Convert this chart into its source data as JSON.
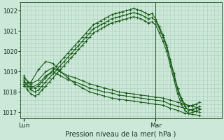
{
  "title": "Pression niveau de la mer( hPa )",
  "ylim": [
    1016.7,
    1022.4
  ],
  "xlim": [
    -1,
    54
  ],
  "yticks": [
    1017,
    1018,
    1019,
    1020,
    1021,
    1022
  ],
  "xtick_positions": [
    0,
    36
  ],
  "xtick_labels": [
    "Lun",
    "Mar"
  ],
  "background_color": "#cce8d8",
  "grid_color": "#aaccbb",
  "line_color": "#1a5c1a",
  "vline_x": 36,
  "series": [
    {
      "x": [
        0,
        1,
        2,
        3,
        4,
        5,
        6,
        7,
        8,
        9,
        10,
        11,
        12,
        13,
        14,
        15,
        16,
        17,
        18,
        19,
        20,
        21,
        22,
        23,
        24,
        25,
        26,
        27,
        28,
        29,
        30,
        31,
        32,
        33,
        34,
        35,
        36,
        37,
        38,
        39,
        40,
        41,
        42,
        43,
        44,
        45,
        46,
        47,
        48
      ],
      "y": [
        1018.8,
        1018.5,
        1018.3,
        1018.2,
        1018.3,
        1018.5,
        1018.7,
        1018.9,
        1019.1,
        1019.3,
        1019.5,
        1019.7,
        1019.9,
        1020.1,
        1020.3,
        1020.5,
        1020.7,
        1020.9,
        1021.1,
        1021.3,
        1021.4,
        1021.5,
        1021.6,
        1021.7,
        1021.8,
        1021.85,
        1021.9,
        1021.95,
        1022.0,
        1022.05,
        1022.1,
        1022.05,
        1022.0,
        1021.9,
        1021.8,
        1021.85,
        1021.6,
        1021.2,
        1020.8,
        1020.3,
        1019.6,
        1018.9,
        1018.2,
        1017.7,
        1017.4,
        1017.3,
        1017.35,
        1017.4,
        1017.5
      ]
    },
    {
      "x": [
        0,
        1,
        2,
        3,
        4,
        5,
        6,
        7,
        8,
        9,
        10,
        11,
        12,
        13,
        14,
        15,
        16,
        17,
        18,
        19,
        20,
        21,
        22,
        23,
        24,
        25,
        26,
        27,
        28,
        29,
        30,
        31,
        32,
        33,
        34,
        35,
        36,
        37,
        38,
        39,
        40,
        41,
        42,
        43,
        44,
        45,
        46,
        47,
        48
      ],
      "y": [
        1018.6,
        1018.3,
        1018.1,
        1018.0,
        1018.1,
        1018.3,
        1018.5,
        1018.7,
        1018.9,
        1019.1,
        1019.3,
        1019.5,
        1019.7,
        1019.9,
        1020.1,
        1020.3,
        1020.5,
        1020.7,
        1020.9,
        1021.1,
        1021.2,
        1021.3,
        1021.4,
        1021.5,
        1021.6,
        1021.65,
        1021.7,
        1021.75,
        1021.8,
        1021.85,
        1021.9,
        1021.85,
        1021.8,
        1021.7,
        1021.6,
        1021.65,
        1021.5,
        1021.1,
        1020.7,
        1020.2,
        1019.5,
        1018.8,
        1018.1,
        1017.6,
        1017.3,
        1017.1,
        1017.15,
        1017.2,
        1017.3
      ]
    },
    {
      "x": [
        0,
        2,
        4,
        6,
        8,
        10,
        12,
        14,
        16,
        18,
        20,
        22,
        24,
        26,
        28,
        30,
        32,
        34,
        36,
        38,
        40,
        42,
        44,
        46,
        48
      ],
      "y": [
        1018.7,
        1018.4,
        1018.6,
        1019.0,
        1019.2,
        1019.0,
        1018.8,
        1018.7,
        1018.55,
        1018.4,
        1018.3,
        1018.2,
        1018.1,
        1018.0,
        1017.95,
        1017.9,
        1017.85,
        1017.8,
        1017.75,
        1017.7,
        1017.6,
        1017.5,
        1017.4,
        1017.3,
        1017.2
      ]
    },
    {
      "x": [
        0,
        2,
        4,
        6,
        8,
        10,
        12,
        14,
        16,
        18,
        20,
        22,
        24,
        26,
        28,
        30,
        32,
        34,
        36,
        38,
        40,
        42,
        44,
        46,
        48
      ],
      "y": [
        1018.5,
        1018.2,
        1018.4,
        1018.8,
        1019.0,
        1018.8,
        1018.6,
        1018.5,
        1018.35,
        1018.2,
        1018.1,
        1018.0,
        1017.95,
        1017.85,
        1017.8,
        1017.75,
        1017.7,
        1017.65,
        1017.6,
        1017.55,
        1017.4,
        1017.3,
        1017.2,
        1017.1,
        1017.0
      ]
    },
    {
      "x": [
        0,
        2,
        4,
        6,
        8,
        10,
        12,
        14,
        16,
        18,
        20,
        22,
        24,
        26,
        28,
        30,
        32,
        34,
        36,
        38,
        40,
        42,
        44,
        46,
        48
      ],
      "y": [
        1018.3,
        1018.5,
        1019.1,
        1019.5,
        1019.4,
        1019.0,
        1018.7,
        1018.4,
        1018.2,
        1018.0,
        1017.9,
        1017.8,
        1017.7,
        1017.65,
        1017.6,
        1017.55,
        1017.5,
        1017.45,
        1017.4,
        1017.35,
        1017.2,
        1017.1,
        1016.95,
        1016.9,
        1016.85
      ]
    },
    {
      "x": [
        0,
        1,
        2,
        3,
        4,
        5,
        6,
        7,
        8,
        9,
        10,
        11,
        12,
        13,
        14,
        15,
        16,
        17,
        18,
        19,
        20,
        21,
        22,
        23,
        24,
        25,
        26,
        27,
        28,
        29,
        30,
        31,
        32,
        33,
        34,
        35,
        36,
        37,
        38,
        39,
        40,
        41,
        42,
        43,
        44,
        45,
        46,
        47,
        48
      ],
      "y": [
        1018.4,
        1018.1,
        1017.9,
        1017.8,
        1017.9,
        1018.1,
        1018.3,
        1018.5,
        1018.7,
        1018.9,
        1019.1,
        1019.3,
        1019.5,
        1019.7,
        1019.9,
        1020.1,
        1020.3,
        1020.5,
        1020.7,
        1020.9,
        1021.0,
        1021.1,
        1021.2,
        1021.3,
        1021.4,
        1021.45,
        1021.5,
        1021.55,
        1021.6,
        1021.65,
        1021.7,
        1021.65,
        1021.6,
        1021.5,
        1021.4,
        1021.45,
        1021.3,
        1020.9,
        1020.5,
        1020.0,
        1019.3,
        1018.6,
        1017.9,
        1017.4,
        1017.1,
        1016.95,
        1017.0,
        1017.05,
        1017.15
      ]
    }
  ]
}
